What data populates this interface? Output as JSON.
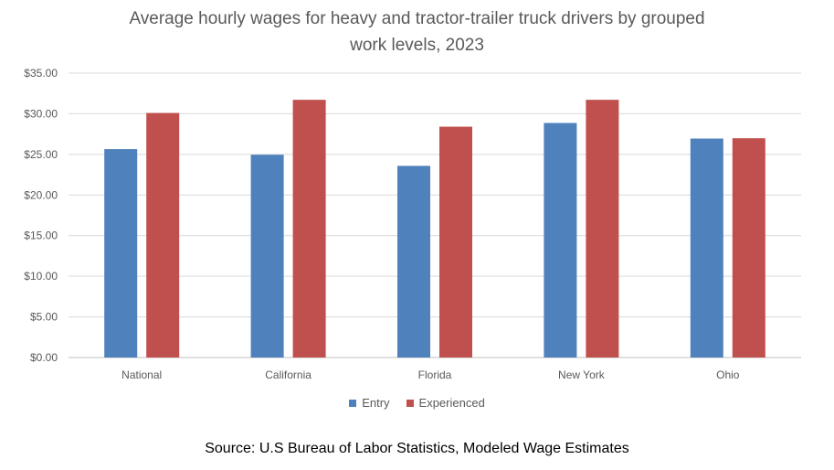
{
  "chart_data": {
    "type": "bar",
    "title_line1": "Average hourly wages for heavy and tractor-trailer truck drivers by grouped",
    "title_line2": "work levels, 2023",
    "categories": [
      "National",
      "California",
      "Florida",
      "New York",
      "Ohio"
    ],
    "series": [
      {
        "name": "Entry",
        "color": "#4f81bd",
        "values": [
          25.65,
          24.96,
          23.59,
          28.87,
          26.95
        ]
      },
      {
        "name": "Experienced",
        "color": "#c0504d",
        "values": [
          30.1,
          31.72,
          28.41,
          31.72,
          26.99
        ]
      }
    ],
    "ylim": [
      0,
      35
    ],
    "yticks": [
      "$0.00",
      "$5.00",
      "$10.00",
      "$15.00",
      "$20.00",
      "$25.00",
      "$30.00",
      "$35.00"
    ],
    "grid": true,
    "legend_position": "bottom",
    "source": "Source: U.S Bureau of Labor Statistics, Modeled Wage Estimates"
  }
}
